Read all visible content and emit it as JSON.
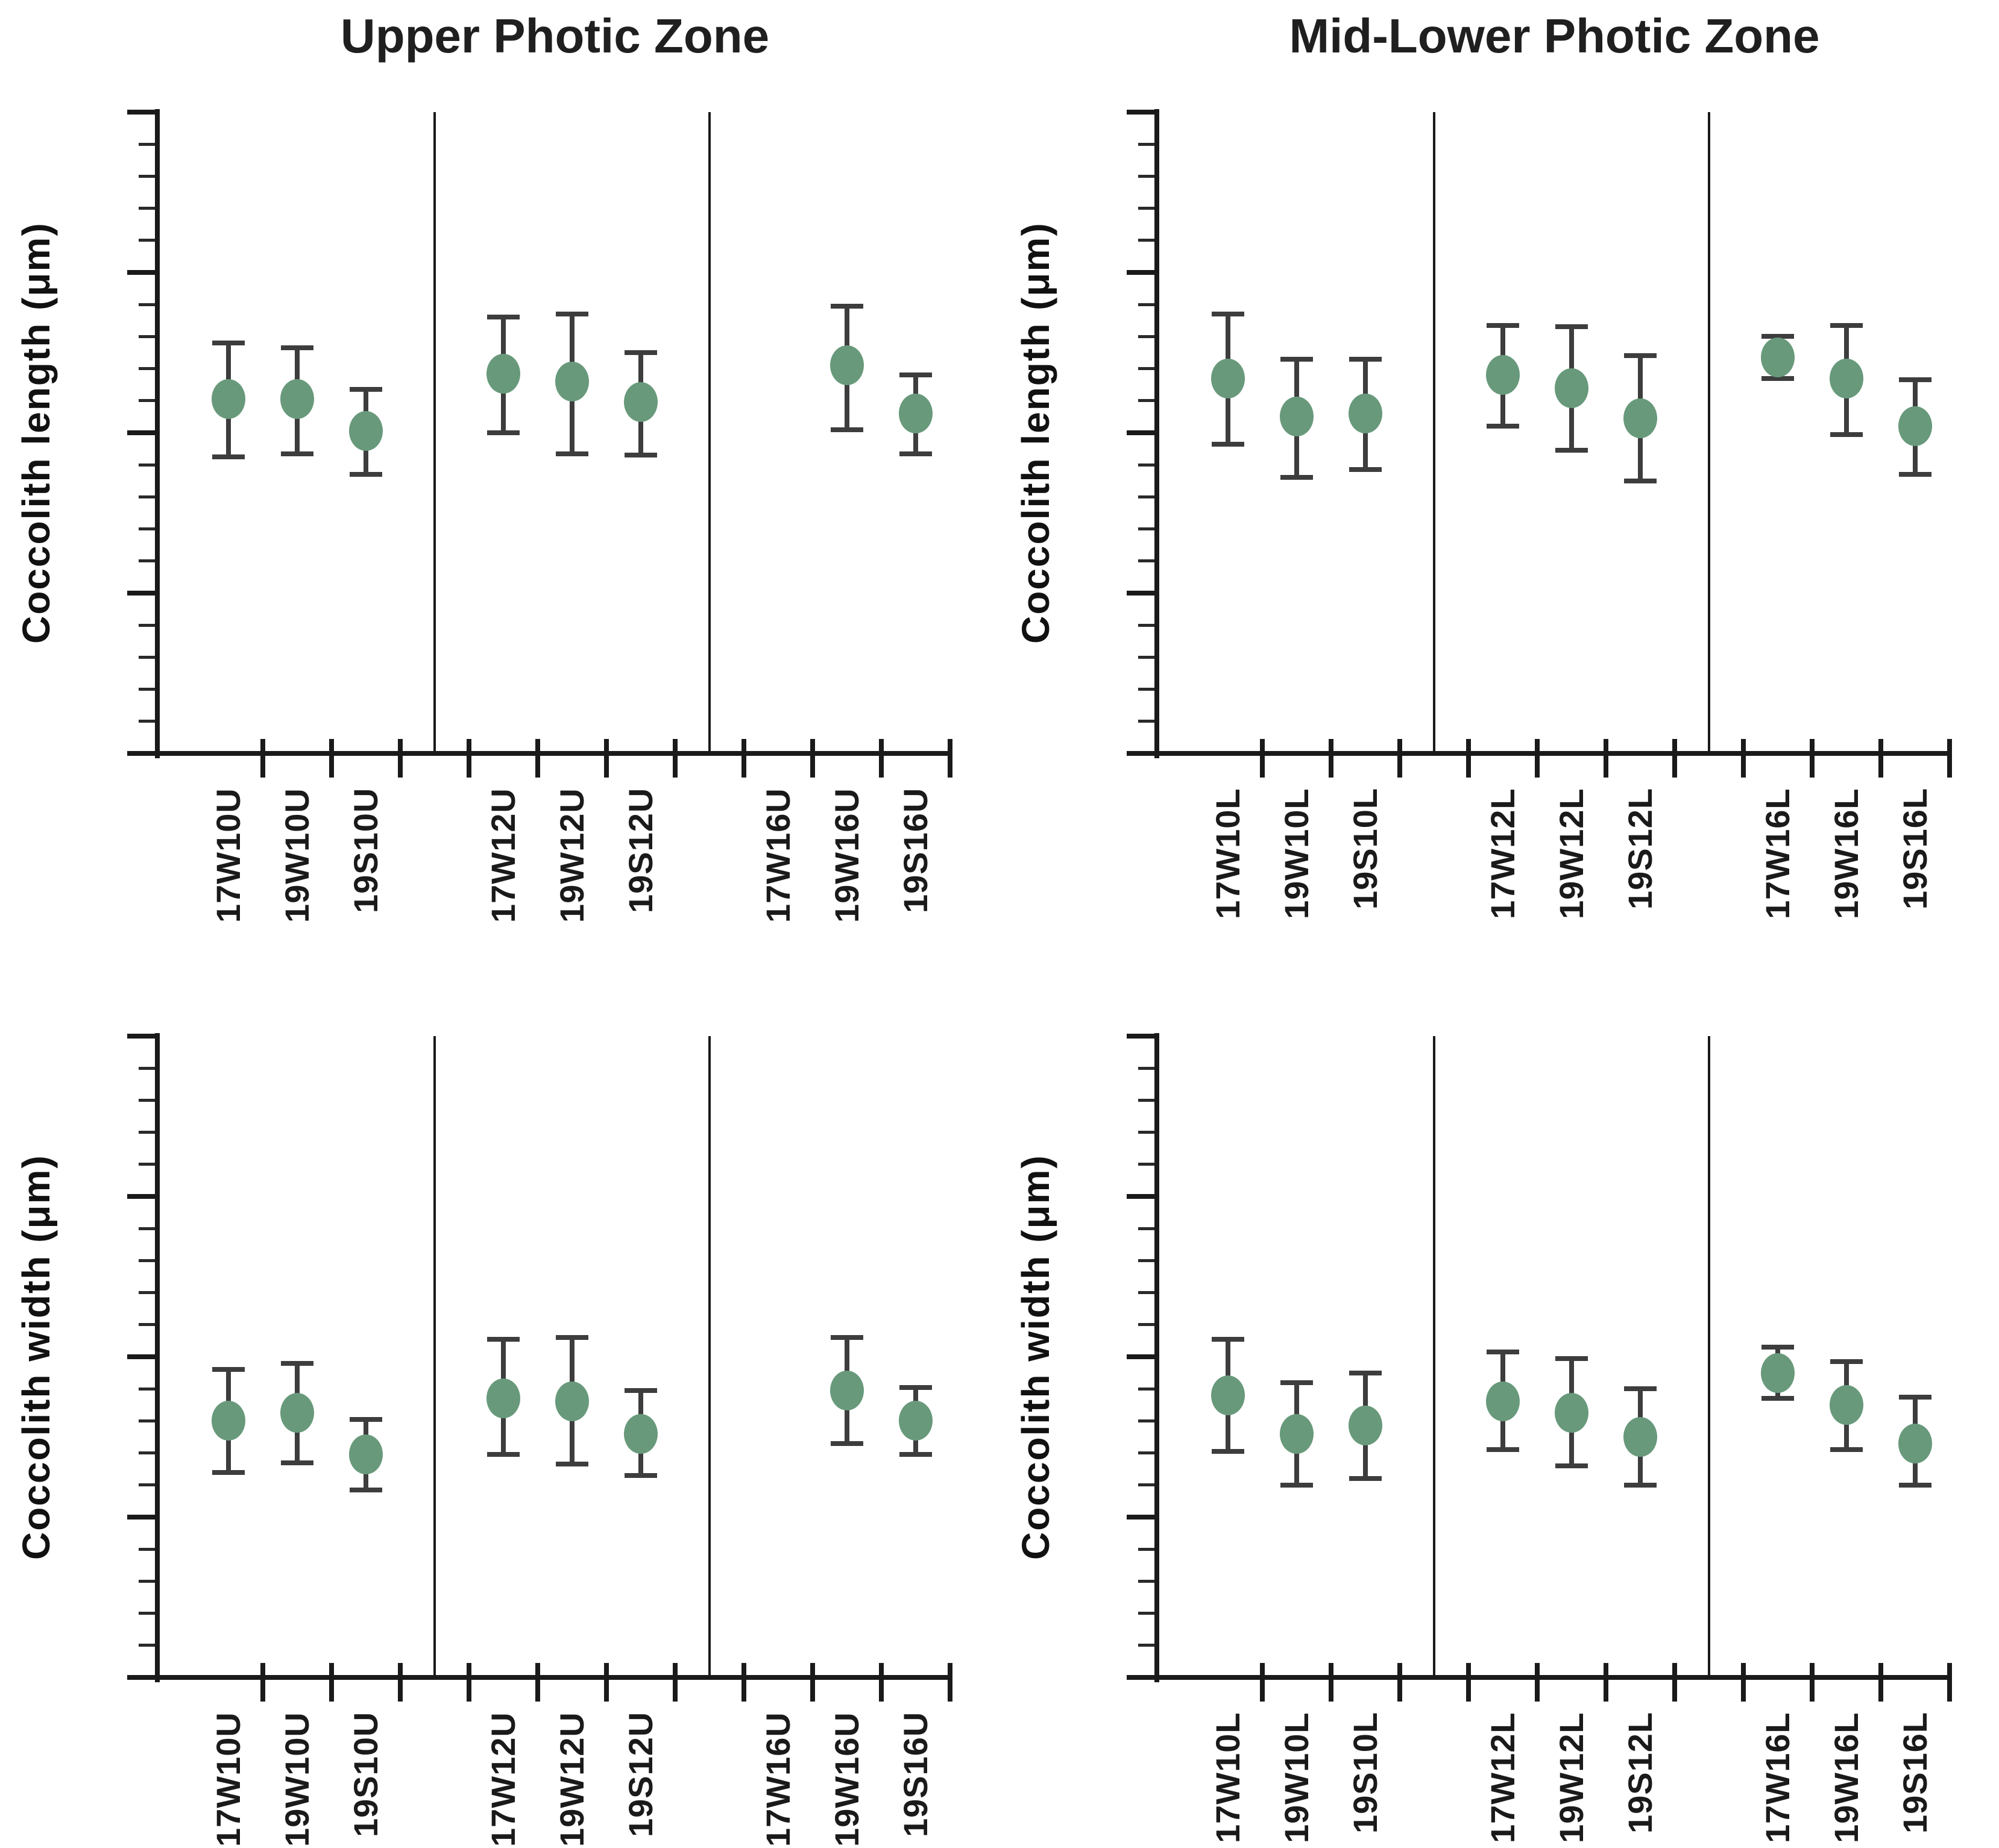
{
  "figure": {
    "background": "#FFFFFF",
    "marker_color": "#68997B",
    "errorbar_color": "#3D3D3D",
    "axis_color": "#1A1A1A",
    "titles": [
      "Upper Photic Zone",
      "Mid-Lower Photic Zone"
    ]
  },
  "chart_data": [
    {
      "type": "scatter",
      "panel": "top-left",
      "title": "Upper Photic Zone",
      "ylabel": "Coccolith length (μm)",
      "xlabel": "",
      "ylim": [
        1,
        5
      ],
      "yticks": [
        1,
        2,
        3,
        4,
        5
      ],
      "y_minor_step": 0.2,
      "grid": false,
      "legend": "none",
      "error_bars": true,
      "categories": [
        "17W10U",
        "19W10U",
        "19S10U",
        "17W12U",
        "19W12U",
        "19S12U",
        "17W16U",
        "19W16U",
        "19S16U"
      ],
      "means": [
        3.21,
        3.21,
        3.01,
        3.37,
        3.32,
        3.19,
        null,
        3.42,
        3.12
      ],
      "lower": [
        2.85,
        2.87,
        2.74,
        3.0,
        2.87,
        2.86,
        null,
        3.02,
        2.87
      ],
      "upper": [
        3.56,
        3.53,
        3.27,
        3.72,
        3.74,
        3.5,
        null,
        3.79,
        3.36
      ]
    },
    {
      "type": "scatter",
      "panel": "top-right",
      "title": "Mid-Lower Photic Zone",
      "ylabel": "Coccolith length (μm)",
      "xlabel": "",
      "ylim": [
        1,
        5
      ],
      "yticks": [
        1,
        2,
        3,
        4,
        5
      ],
      "y_minor_step": 0.2,
      "grid": false,
      "legend": "none",
      "error_bars": true,
      "categories": [
        "17W10L",
        "19W10L",
        "19S10L",
        "17W12L",
        "19W12L",
        "19S12L",
        "17W16L",
        "19W16L",
        "19S16L"
      ],
      "means": [
        3.34,
        3.1,
        3.12,
        3.36,
        3.28,
        3.09,
        3.47,
        3.34,
        3.04
      ],
      "lower": [
        2.93,
        2.72,
        2.77,
        3.04,
        2.89,
        2.7,
        3.34,
        2.99,
        2.74
      ],
      "upper": [
        3.74,
        3.46,
        3.46,
        3.67,
        3.66,
        3.48,
        3.6,
        3.67,
        3.33
      ]
    },
    {
      "type": "scatter",
      "panel": "bottom-left",
      "title": "",
      "ylabel": "Coccolith width (μm)",
      "xlabel": "",
      "ylim": [
        1,
        5
      ],
      "yticks": [
        1,
        2,
        3,
        4,
        5
      ],
      "y_minor_step": 0.2,
      "grid": false,
      "legend": "none",
      "error_bars": true,
      "categories": [
        "17W10U",
        "19W10U",
        "19S10U",
        "17W12U",
        "19W12U",
        "19S12U",
        "17W16U",
        "19W16U",
        "19S16U"
      ],
      "means": [
        2.6,
        2.65,
        2.39,
        2.74,
        2.72,
        2.52,
        null,
        2.79,
        2.6
      ],
      "lower": [
        2.28,
        2.34,
        2.17,
        2.39,
        2.33,
        2.26,
        null,
        2.46,
        2.39
      ],
      "upper": [
        2.92,
        2.96,
        2.61,
        3.11,
        3.12,
        2.79,
        null,
        3.12,
        2.81
      ]
    },
    {
      "type": "scatter",
      "panel": "bottom-right",
      "title": "",
      "ylabel": "Coccolith width (μm)",
      "xlabel": "",
      "ylim": [
        1,
        5
      ],
      "yticks": [
        1,
        2,
        3,
        4,
        5
      ],
      "y_minor_step": 0.2,
      "grid": false,
      "legend": "none",
      "error_bars": true,
      "categories": [
        "17W10L",
        "19W10L",
        "19S10L",
        "17W12L",
        "19W12L",
        "19S12L",
        "17W16L",
        "19W16L",
        "19S16L"
      ],
      "means": [
        2.76,
        2.52,
        2.57,
        2.72,
        2.65,
        2.5,
        2.9,
        2.7,
        2.46
      ],
      "lower": [
        2.41,
        2.2,
        2.24,
        2.42,
        2.32,
        2.2,
        2.74,
        2.42,
        2.2
      ],
      "upper": [
        3.11,
        2.84,
        2.9,
        3.03,
        2.99,
        2.8,
        3.06,
        2.97,
        2.75
      ]
    }
  ]
}
